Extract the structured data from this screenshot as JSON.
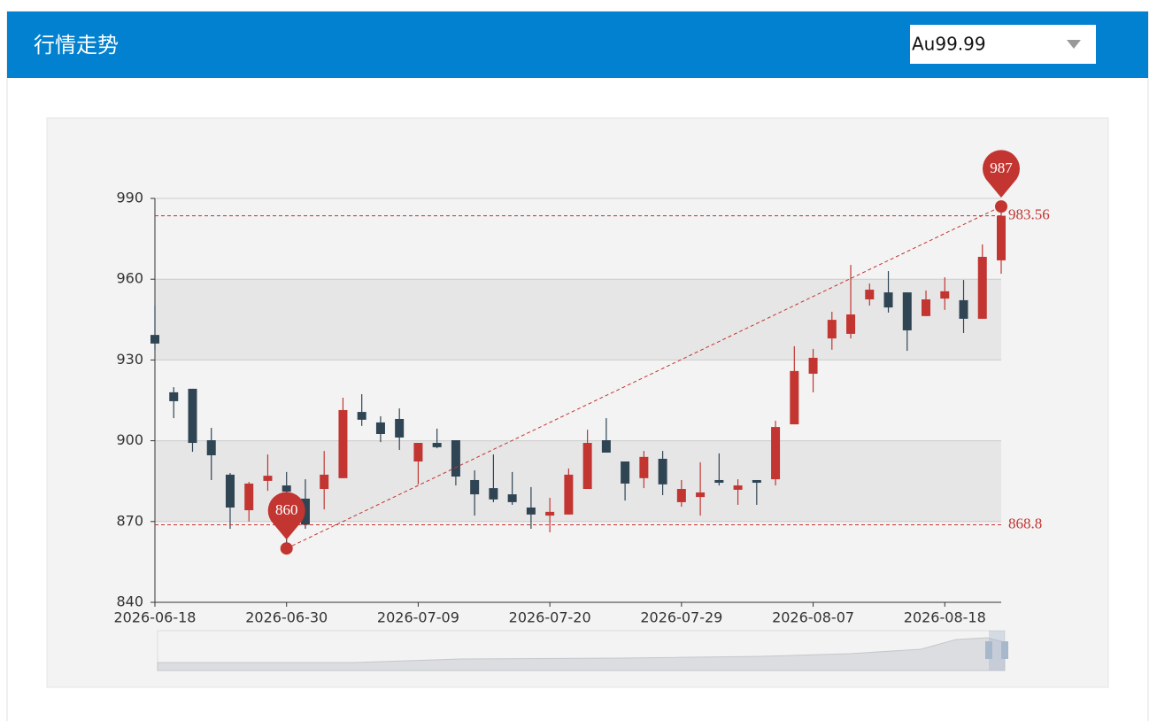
{
  "header": {
    "title": "行情走势",
    "select": "Au99.99"
  },
  "chart_data": {
    "type": "candlestick",
    "categories": [
      "2026-06-18",
      null,
      null,
      null,
      null,
      null,
      null,
      "2026-06-30",
      null,
      null,
      null,
      null,
      null,
      null,
      "2026-07-09",
      null,
      null,
      null,
      null,
      null,
      null,
      "2026-07-20",
      null,
      null,
      null,
      null,
      null,
      null,
      "2026-07-29",
      null,
      null,
      null,
      null,
      null,
      null,
      "2026-08-07",
      null,
      null,
      null,
      null,
      null,
      null,
      "2026-08-18",
      null,
      null,
      null
    ],
    "open": [
      939.3,
      918,
      919.3,
      900.2,
      887.4,
      874.2,
      885.1,
      883.4,
      878.5,
      882.1,
      886.1,
      910.7,
      906.8,
      908.1,
      892.3,
      899.2,
      900.2,
      885.4,
      882.4,
      880.1,
      875.2,
      872.2,
      872.6,
      882.1,
      900.2,
      892.3,
      886.1,
      893.3,
      877.2,
      879.1,
      885.4,
      881.8,
      885.4,
      885.7,
      906.1,
      924.9,
      938,
      939.7,
      952.5,
      955.1,
      955.1,
      946.3,
      952.8,
      952.2,
      945.3,
      967
    ],
    "close": [
      936.1,
      914.7,
      899.2,
      894.6,
      875.2,
      884.1,
      887,
      881.1,
      868.8,
      887.4,
      911.4,
      907.8,
      902.5,
      901.2,
      899.2,
      897.6,
      886.7,
      880.1,
      878.2,
      877.2,
      872.6,
      873.6,
      887.4,
      899.2,
      895.6,
      884.1,
      894,
      883.8,
      882.1,
      880.8,
      884.4,
      883.4,
      884.4,
      905.1,
      925.9,
      930.8,
      944.9,
      946.9,
      956.1,
      949.5,
      941,
      952.5,
      955.5,
      945.3,
      968.3,
      983.56
    ],
    "low": [
      933.8,
      908.4,
      895.9,
      885.4,
      867.3,
      870,
      881.4,
      860,
      867.3,
      874.5,
      886.1,
      905.5,
      899.5,
      896.6,
      883.8,
      897.2,
      883.4,
      872.2,
      877.2,
      876.2,
      867.3,
      866,
      872.6,
      882.1,
      895.6,
      877.8,
      882.4,
      879.8,
      875.5,
      872.2,
      883.4,
      876.2,
      876.2,
      883.4,
      906.1,
      918,
      933.8,
      938,
      950.2,
      947.6,
      933.4,
      946.3,
      948.6,
      940,
      945.3,
      962
    ],
    "high": [
      950.2,
      919.9,
      919.3,
      904.8,
      888,
      884.7,
      894.9,
      888.4,
      885.7,
      896.2,
      916,
      917.3,
      909.1,
      912,
      899.2,
      904.5,
      900.2,
      889,
      894.9,
      888.4,
      882.8,
      878.8,
      889.7,
      904.1,
      908.4,
      892.3,
      896.2,
      896.2,
      885.4,
      892,
      895.3,
      885.7,
      885.4,
      907.4,
      935.1,
      934.1,
      947.9,
      965.3,
      958.4,
      963,
      955.1,
      955.8,
      960.7,
      959.7,
      972.9,
      987
    ],
    "up_color": "#c23531",
    "down_color": "#2f4554",
    "ylim": [
      840,
      990
    ],
    "yticks": [
      840,
      870,
      900,
      930,
      960,
      990
    ],
    "grid": true,
    "split_area": true,
    "mark_lines": [
      983.56,
      868.8
    ],
    "mark_points": [
      860,
      987
    ]
  }
}
